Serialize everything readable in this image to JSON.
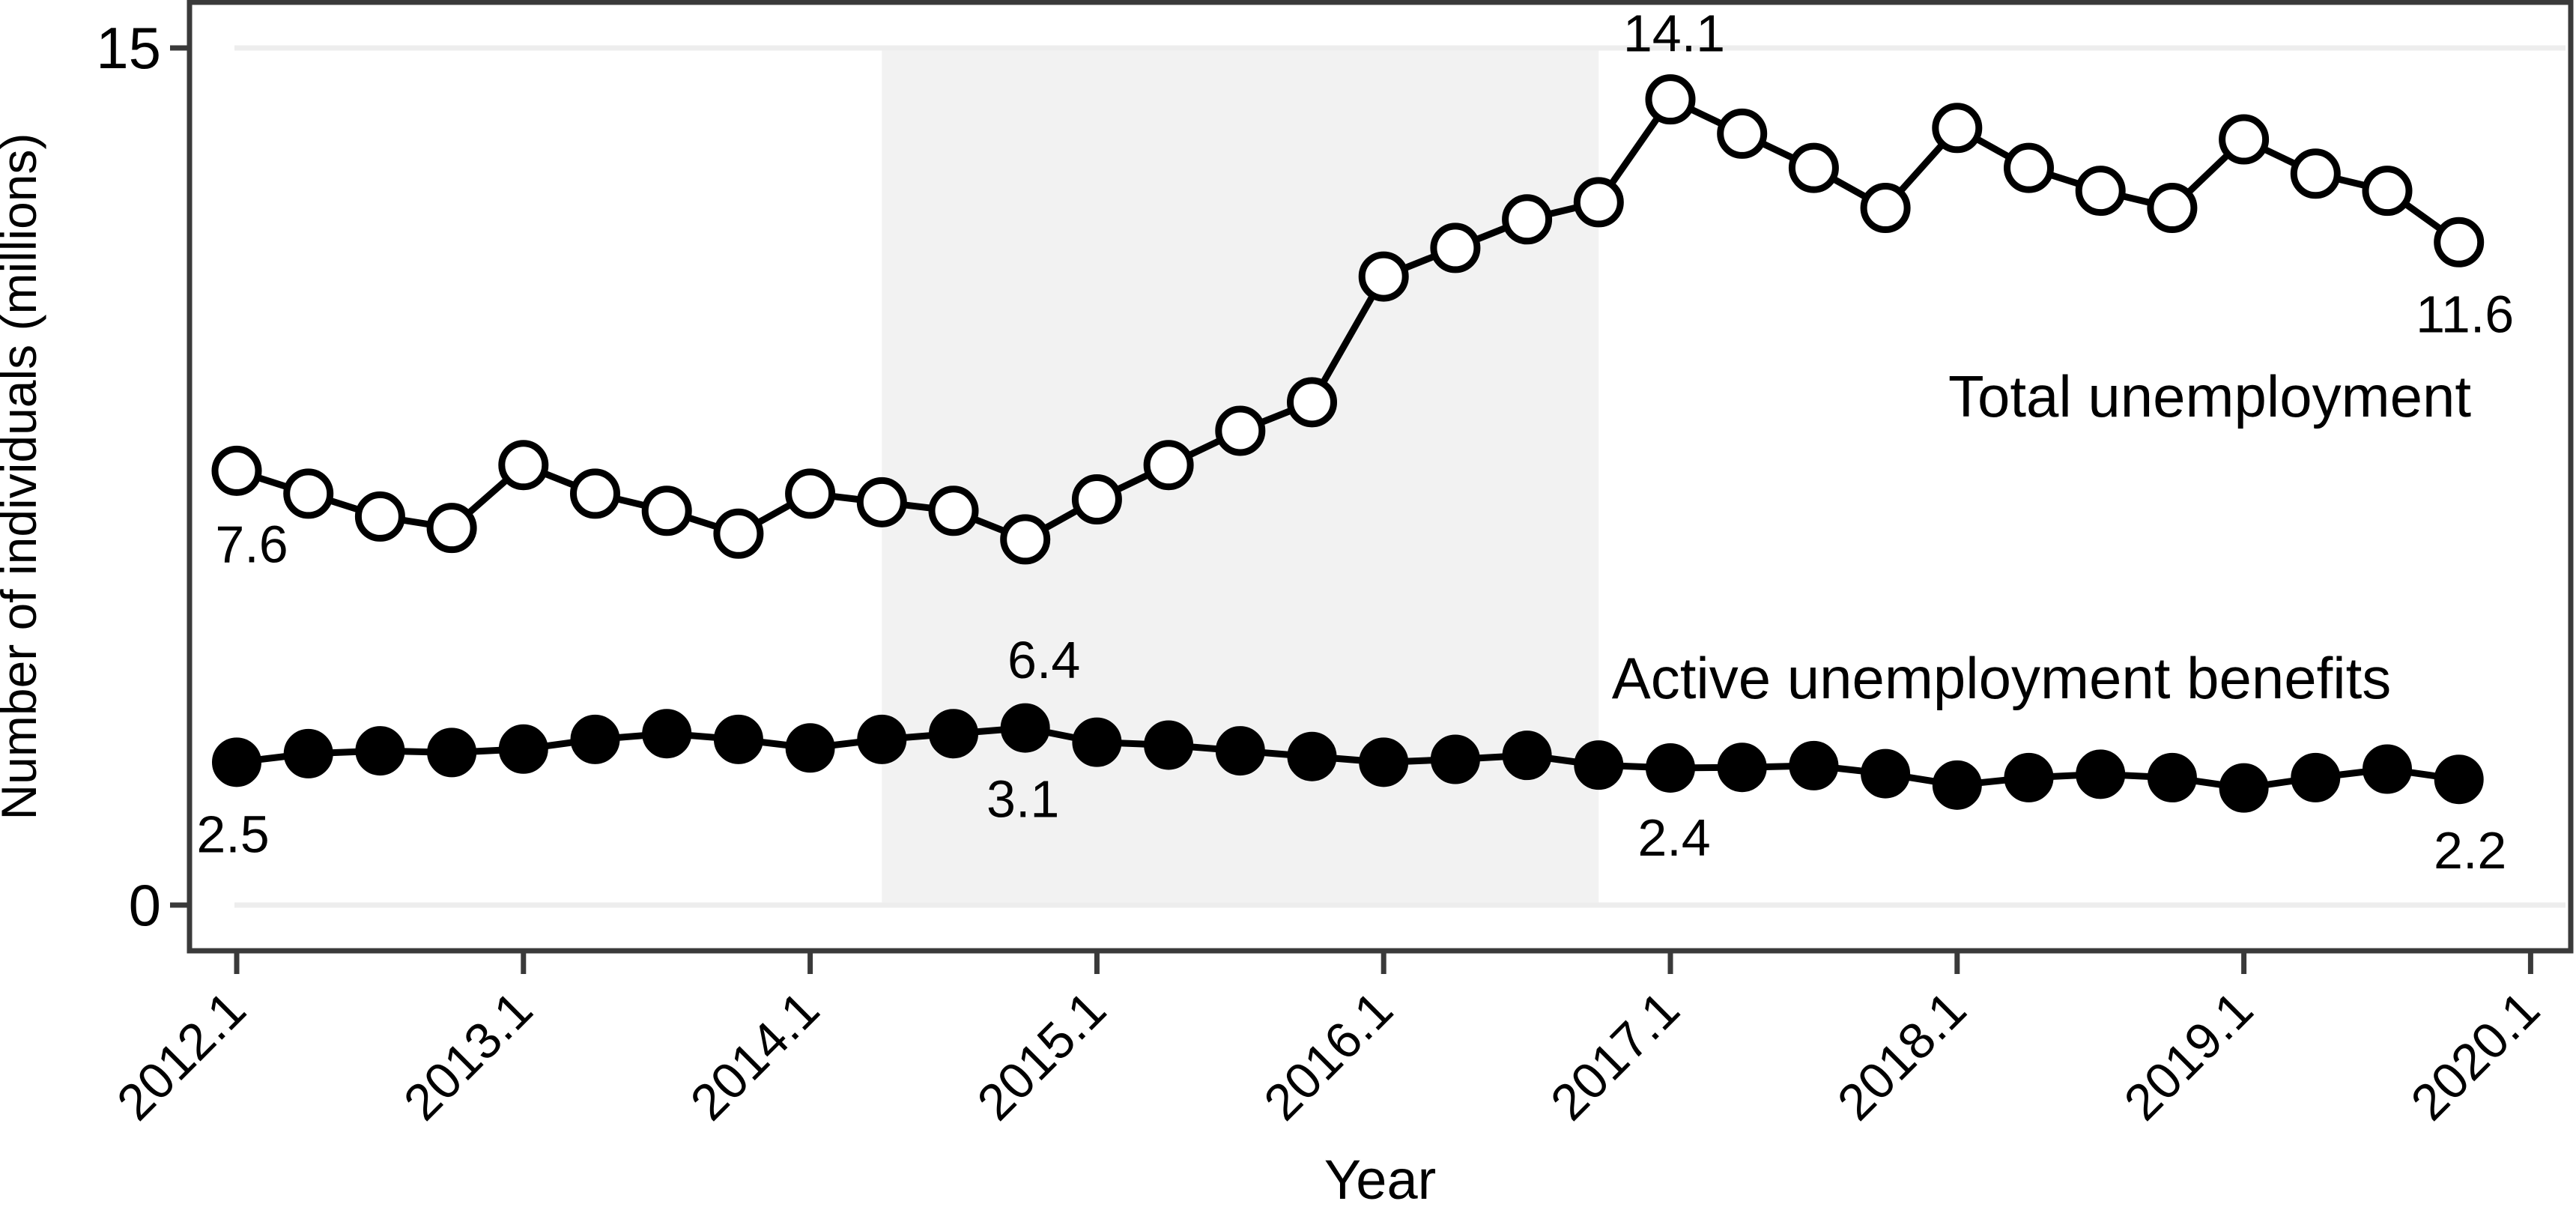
{
  "chart_data": {
    "type": "line",
    "title": "",
    "xlabel": "Year",
    "ylabel": "Number of individuals (millions)",
    "ylim": [
      0,
      15
    ],
    "yticks": [
      0,
      15
    ],
    "ytick_labels": [
      "0",
      "15"
    ],
    "xtick_labels": [
      "2012.1",
      "2013.1",
      "2014.1",
      "2015.1",
      "2016.1",
      "2017.1",
      "2018.1",
      "2019.1",
      "2020.1"
    ],
    "xtick_indices": [
      0,
      4,
      8,
      12,
      16,
      20,
      24,
      28,
      32
    ],
    "x": [
      "2012.1",
      "2012.2",
      "2012.3",
      "2012.4",
      "2013.1",
      "2013.2",
      "2013.3",
      "2013.4",
      "2014.1",
      "2014.2",
      "2014.3",
      "2014.4",
      "2015.1",
      "2015.2",
      "2015.3",
      "2015.4",
      "2016.1",
      "2016.2",
      "2016.3",
      "2016.4",
      "2017.1",
      "2017.2",
      "2017.3",
      "2017.4",
      "2018.1",
      "2018.2",
      "2018.3",
      "2018.4",
      "2019.1",
      "2019.2",
      "2019.3",
      "2019.4"
    ],
    "grid": {
      "horizontal_at": [
        0,
        15
      ],
      "color": "#ededed"
    },
    "legend_position": "none (inline series annotations)",
    "shaded_region": {
      "from_index": 9,
      "to_index": 19,
      "color": "#f2f2f2"
    },
    "series": [
      {
        "name": "Total unemployment",
        "marker": "open-circle",
        "color": "#000000",
        "values": [
          7.6,
          7.2,
          6.8,
          6.6,
          7.7,
          7.2,
          6.9,
          6.5,
          7.2,
          7.05,
          6.9,
          6.4,
          7.1,
          7.7,
          8.3,
          8.8,
          11.0,
          11.5,
          12.0,
          12.3,
          14.1,
          13.5,
          12.9,
          12.2,
          13.6,
          12.9,
          12.5,
          12.2,
          13.4,
          12.8,
          12.5,
          11.6
        ]
      },
      {
        "name": "Active unemployment benefits",
        "marker": "filled-circle",
        "color": "#000000",
        "values": [
          2.5,
          2.65,
          2.7,
          2.67,
          2.73,
          2.9,
          3.0,
          2.9,
          2.75,
          2.9,
          3.0,
          3.1,
          2.85,
          2.8,
          2.7,
          2.6,
          2.5,
          2.55,
          2.62,
          2.45,
          2.4,
          2.41,
          2.44,
          2.3,
          2.1,
          2.23,
          2.29,
          2.23,
          2.05,
          2.23,
          2.38,
          2.2
        ]
      }
    ],
    "point_labels": [
      {
        "series": 0,
        "index": 0,
        "text": "7.6",
        "position": "below"
      },
      {
        "series": 0,
        "index": 11,
        "text": "6.4",
        "position": "below-far"
      },
      {
        "series": 0,
        "index": 20,
        "text": "14.1",
        "position": "above"
      },
      {
        "series": 0,
        "index": 31,
        "text": "11.6",
        "position": "below"
      },
      {
        "series": 1,
        "index": 0,
        "text": "2.5",
        "position": "below"
      },
      {
        "series": 1,
        "index": 11,
        "text": "3.1",
        "position": "below"
      },
      {
        "series": 1,
        "index": 20,
        "text": "2.4",
        "position": "below"
      },
      {
        "series": 1,
        "index": 31,
        "text": "2.2",
        "position": "below"
      }
    ],
    "series_annotations": [
      {
        "text": "Total unemployment",
        "series": 0
      },
      {
        "text": "Active unemployment benefits",
        "series": 1
      }
    ]
  },
  "colors": {
    "line": "#000000",
    "axis": "#3a3a3a",
    "background": "#ffffff",
    "band": "#f2f2f2",
    "grid": "#ededed",
    "text": "#000000"
  }
}
